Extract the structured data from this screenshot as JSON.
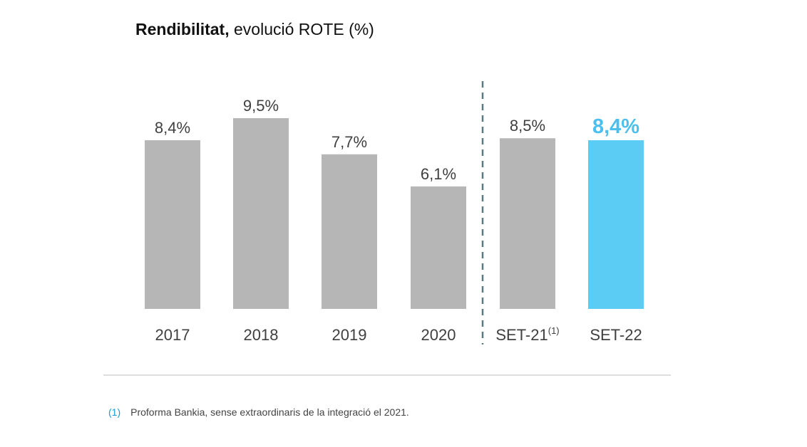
{
  "title": {
    "bold": "Rendibilitat,",
    "rest": "evolució ROTE (%)"
  },
  "footnote": {
    "marker": "(1)",
    "text": "Proforma Bankia, sense extraordinaris de la integració el 2021."
  },
  "colors": {
    "bar_default": "#b6b6b6",
    "bar_highlight": "#5bcdf5",
    "highlight_label": "#4cbfee",
    "label_text": "#404040",
    "divider": "#5a7a80",
    "baseline": "#bdbdbd"
  },
  "chart_data": {
    "type": "bar",
    "title": "Rendibilitat, evolució ROTE (%)",
    "categories": [
      "2017",
      "2018",
      "2019",
      "2020",
      "SET-21",
      "SET-22"
    ],
    "category_superscripts": [
      "",
      "",
      "",
      "",
      "(1)",
      ""
    ],
    "values": [
      8.4,
      9.5,
      7.7,
      6.1,
      8.5,
      8.4
    ],
    "value_labels": [
      "8,4%",
      "9,5%",
      "7,7%",
      "6,1%",
      "8,5%",
      "8,4%"
    ],
    "highlighted": [
      false,
      false,
      false,
      false,
      false,
      true
    ],
    "ylim": [
      0,
      9.5
    ],
    "grid": false,
    "legend": "none"
  }
}
